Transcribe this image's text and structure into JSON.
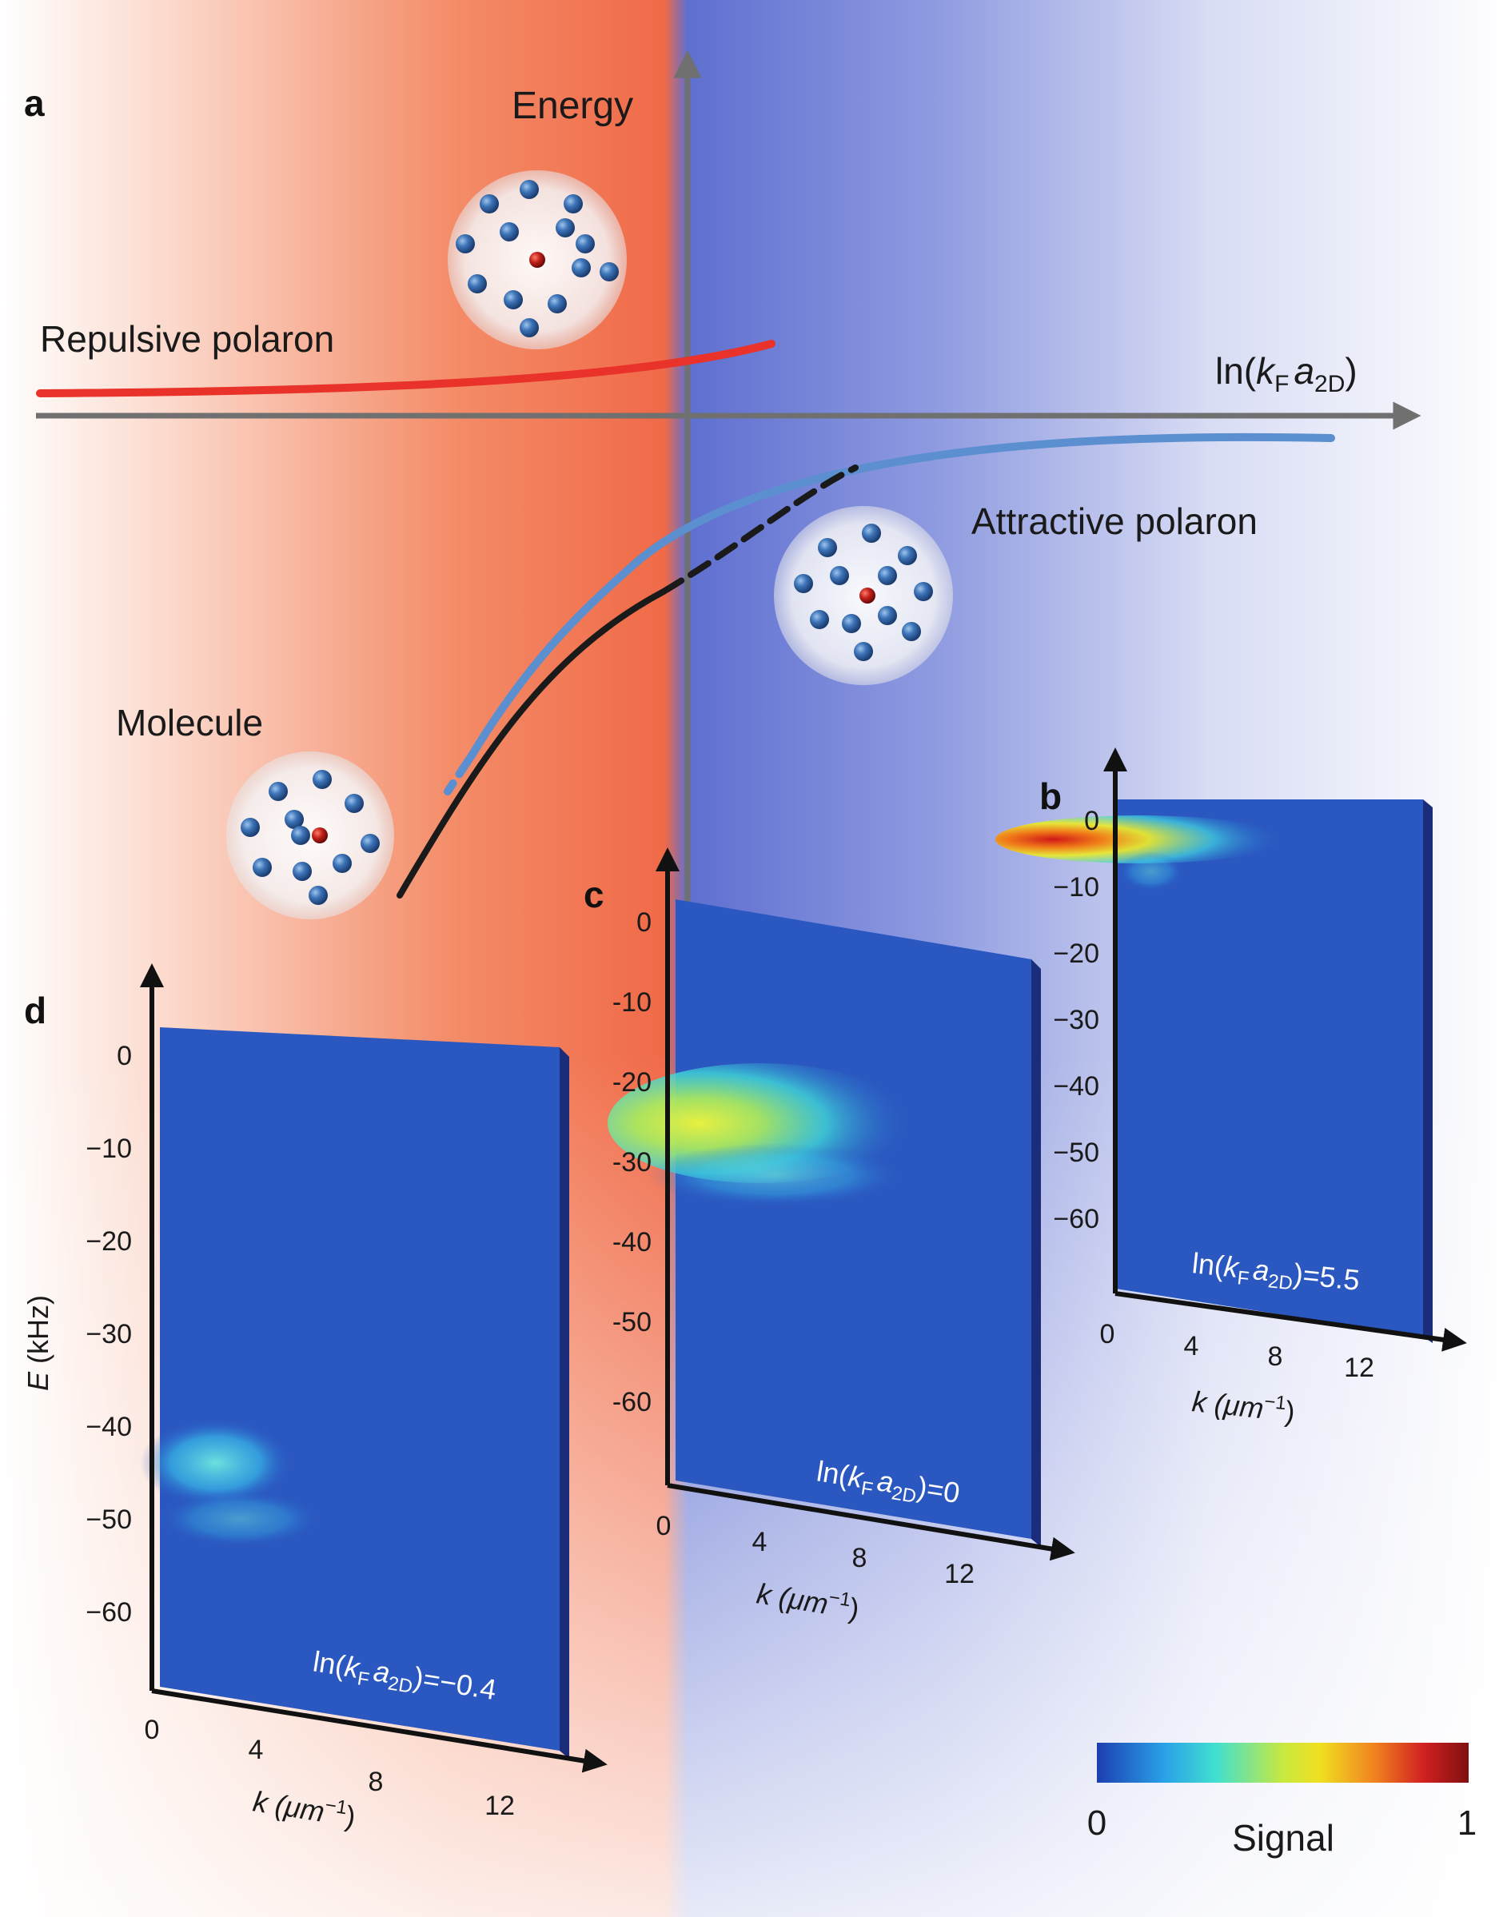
{
  "panel_a": {
    "letter": "a",
    "y_axis_label": "Energy",
    "x_axis_label_prefix": "ln(",
    "x_axis_label_k": "k",
    "x_axis_label_k_sub": "F",
    "x_axis_label_a": "a",
    "x_axis_label_a_sub": "2D",
    "x_axis_label_suffix": ")",
    "curve_labels": {
      "repulsive": "Repulsive polaron",
      "attractive": "Attractive polaron",
      "molecule": "Molecule"
    },
    "colors": {
      "repulsive": "#e8322a",
      "attractive": "#5b8fd0",
      "molecule": "#1a1a1a",
      "background_left": "#f07050",
      "background_right": "#5a6ed0"
    }
  },
  "insets": {
    "b": {
      "letter": "b",
      "label_prefix": "ln(",
      "label_value": "=5.5",
      "y_ticks": [
        "0",
        "−10",
        "−20",
        "−30",
        "−40",
        "−50",
        "−60"
      ],
      "x_ticks": [
        "0",
        "4",
        "8",
        "12"
      ],
      "x_label_k": "k",
      "x_label_unit": " (μm",
      "x_label_exp": "−1",
      "x_label_close": ")"
    },
    "c": {
      "letter": "c",
      "label_prefix": "ln(",
      "label_value": "=0",
      "y_ticks": [
        "0",
        "-10",
        "-20",
        "-30",
        "-40",
        "-50",
        "-60"
      ],
      "x_ticks": [
        "0",
        "4",
        "8",
        "12"
      ],
      "x_label_k": "k",
      "x_label_unit": " (μm",
      "x_label_exp": "−1",
      "x_label_close": ")"
    },
    "d": {
      "letter": "d",
      "label_prefix": "ln(",
      "label_value": "=−0.4",
      "y_ticks": [
        "0",
        "−10",
        "−20",
        "−30",
        "−40",
        "−50",
        "−60"
      ],
      "x_ticks": [
        "0",
        "4",
        "8",
        "12"
      ],
      "y_label_e": "E",
      "y_label_unit": " (kHz)",
      "x_label_k": "k",
      "x_label_unit": " (μm",
      "x_label_exp": "−1",
      "x_label_close": ")"
    }
  },
  "colorbar": {
    "min_label": "0",
    "max_label": "1",
    "title": "Signal",
    "stops": [
      "#1c3fb0",
      "#2aa0e8",
      "#40e0d0",
      "#c8e840",
      "#f0e020",
      "#f08020",
      "#d02020",
      "#801010"
    ]
  }
}
